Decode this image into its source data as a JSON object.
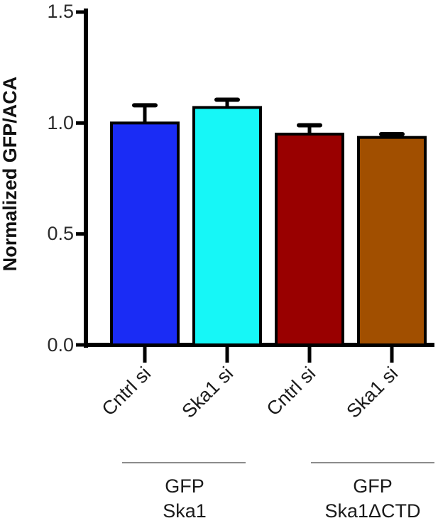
{
  "chart_data": {
    "type": "bar",
    "title": "",
    "xlabel": "",
    "ylabel": "Normalized GFP/ACA",
    "ylim": [
      0,
      1.5
    ],
    "yticks": [
      "0.0",
      "0.5",
      "1.0",
      "1.5"
    ],
    "grid": false,
    "categories": [
      "Cntrl si",
      "Ska1 si",
      "Cntrl si",
      "Ska1 si"
    ],
    "values": [
      1.0,
      1.07,
      0.95,
      0.935
    ],
    "errors": [
      0.08,
      0.035,
      0.04,
      0.015
    ],
    "colors": [
      "#1a2cf5",
      "#16f7f7",
      "#990000",
      "#a14f00"
    ],
    "groups": [
      {
        "lines": [
          "GFP",
          "Ska1"
        ],
        "categories": [
          0,
          1
        ]
      },
      {
        "lines": [
          "GFP",
          "Ska1ΔCTD"
        ],
        "categories": [
          2,
          3
        ]
      }
    ]
  }
}
